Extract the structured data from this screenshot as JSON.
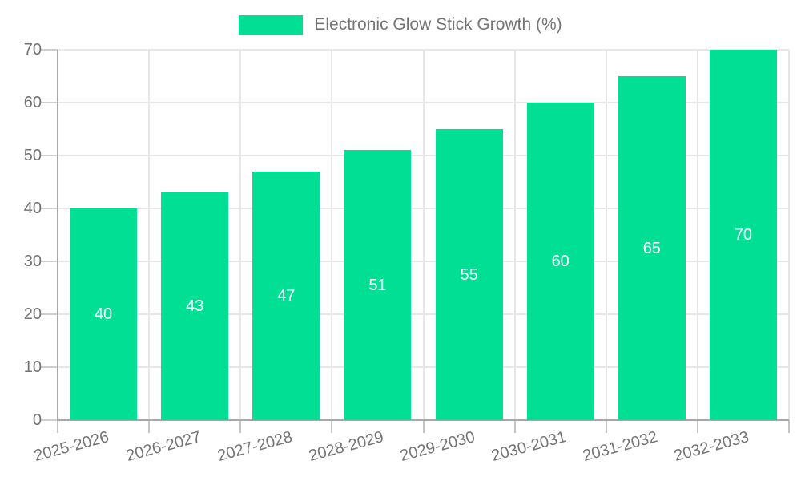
{
  "legend": {
    "items": [
      {
        "label": "Electronic Glow Stick Growth (%)",
        "swatch_color": "#00df94"
      }
    ]
  },
  "chart_data": {
    "type": "bar",
    "title": "Electronic Glow Stick Growth (%)",
    "categories": [
      "2025-2026",
      "2026-2027",
      "2027-2028",
      "2028-2029",
      "2029-2030",
      "2030-2031",
      "2031-2032",
      "2032-2033"
    ],
    "values": [
      40,
      43,
      47,
      51,
      55,
      60,
      65,
      70
    ],
    "xlabel": "",
    "ylabel": "",
    "ylim": [
      0,
      70
    ],
    "yticks": [
      0,
      10,
      20,
      30,
      40,
      50,
      60,
      70
    ],
    "grid": true,
    "legend_position": "top",
    "bar_color": "#00df94",
    "data_label_color": "#ffffff",
    "axis_label_color": "#757575"
  }
}
